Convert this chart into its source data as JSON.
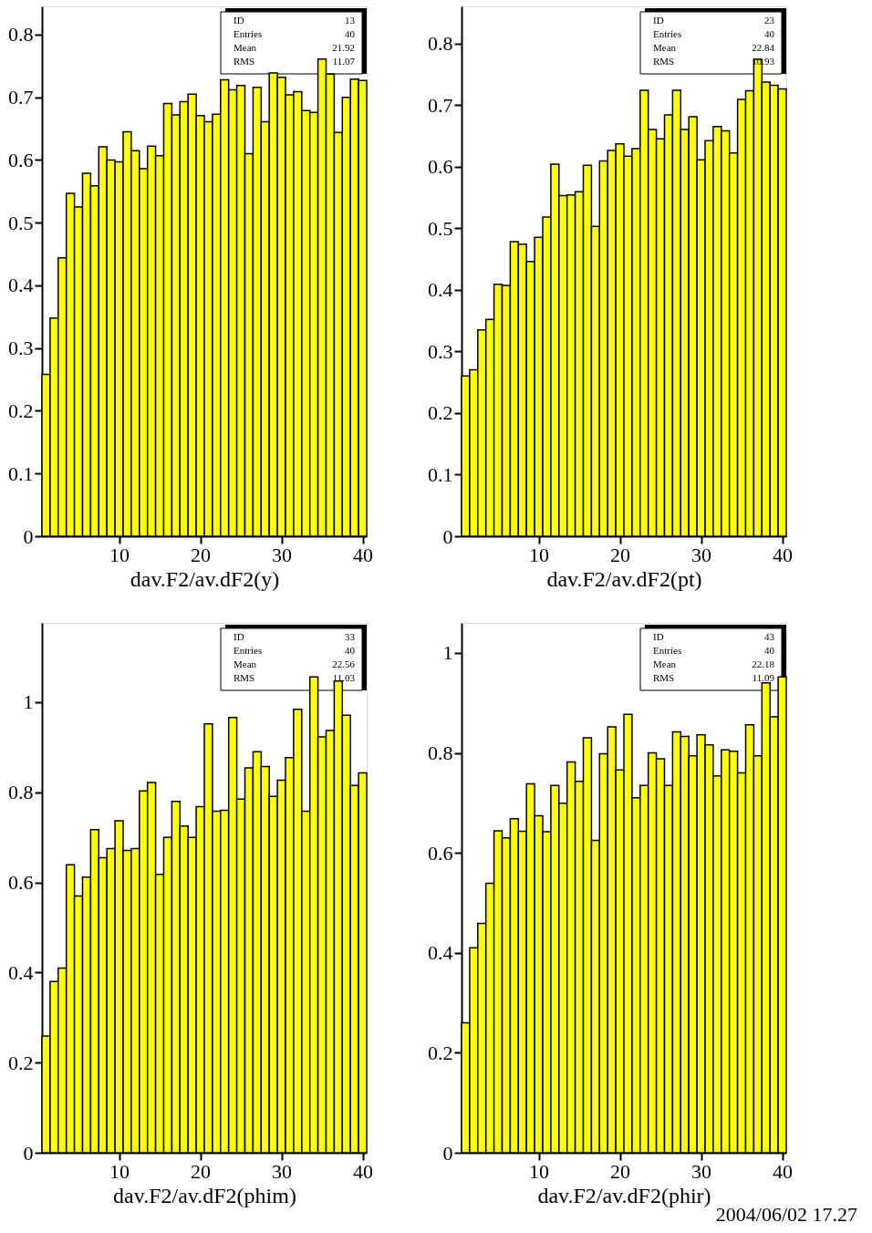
{
  "chart_data": [
    {
      "type": "histogram",
      "xlabel": "dav.F2/av.dF2(y)",
      "color": "#ffff00",
      "xlim": [
        0.5,
        40.5
      ],
      "xticks": [
        10,
        20,
        30,
        40
      ],
      "ylim": [
        0,
        0.845
      ],
      "yticks": [
        0,
        0.1,
        0.2,
        0.3,
        0.4,
        0.5,
        0.6,
        0.7,
        0.8
      ],
      "grid": false,
      "bins": [
        0.5,
        1.5,
        2.5,
        3.5,
        4.5,
        5.5,
        6.5,
        7.5,
        8.5,
        9.5,
        10.5,
        11.5,
        12.5,
        13.5,
        14.5,
        15.5,
        16.5,
        17.5,
        18.5,
        19.5,
        20.5,
        21.5,
        22.5,
        23.5,
        24.5,
        25.5,
        26.5,
        27.5,
        28.5,
        29.5,
        30.5,
        31.5,
        32.5,
        33.5,
        34.5,
        35.5,
        36.5,
        37.5,
        38.5,
        39.5,
        40.5
      ],
      "values": [
        0.258,
        0.348,
        0.444,
        0.547,
        0.525,
        0.579,
        0.559,
        0.621,
        0.6,
        0.597,
        0.645,
        0.615,
        0.586,
        0.622,
        0.607,
        0.69,
        0.672,
        0.693,
        0.705,
        0.671,
        0.661,
        0.673,
        0.728,
        0.712,
        0.719,
        0.61,
        0.716,
        0.661,
        0.739,
        0.732,
        0.704,
        0.709,
        0.679,
        0.676,
        0.761,
        0.737,
        0.644,
        0.7,
        0.729,
        0.727
      ],
      "annotations": [
        "ID",
        "13",
        "Entries",
        "40",
        "Mean",
        "21.92",
        "RMS",
        "11.07"
      ]
    },
    {
      "type": "histogram",
      "xlabel": "dav.F2/av.dF2(pt)",
      "color": "#ffff00",
      "xlim": [
        0.5,
        40.5
      ],
      "xticks": [
        10,
        20,
        30,
        40
      ],
      "ylim": [
        0,
        0.86
      ],
      "yticks": [
        0,
        0.1,
        0.2,
        0.3,
        0.4,
        0.5,
        0.6,
        0.7,
        0.8
      ],
      "grid": false,
      "bins": [
        0.5,
        1.5,
        2.5,
        3.5,
        4.5,
        5.5,
        6.5,
        7.5,
        8.5,
        9.5,
        10.5,
        11.5,
        12.5,
        13.5,
        14.5,
        15.5,
        16.5,
        17.5,
        18.5,
        19.5,
        20.5,
        21.5,
        22.5,
        23.5,
        24.5,
        25.5,
        26.5,
        27.5,
        28.5,
        29.5,
        30.5,
        31.5,
        32.5,
        33.5,
        34.5,
        35.5,
        36.5,
        37.5,
        38.5,
        39.5,
        40.5
      ],
      "values": [
        0.26,
        0.27,
        0.335,
        0.352,
        0.409,
        0.407,
        0.478,
        0.474,
        0.446,
        0.485,
        0.518,
        0.604,
        0.553,
        0.554,
        0.559,
        0.602,
        0.503,
        0.609,
        0.626,
        0.637,
        0.617,
        0.629,
        0.724,
        0.66,
        0.645,
        0.684,
        0.724,
        0.66,
        0.681,
        0.611,
        0.642,
        0.665,
        0.658,
        0.622,
        0.709,
        0.723,
        0.774,
        0.737,
        0.732,
        0.726
      ],
      "annotations": [
        "ID",
        "23",
        "Entries",
        "40",
        "Mean",
        "22.84",
        "RMS",
        "10.93"
      ]
    },
    {
      "type": "histogram",
      "xlabel": "dav.F2/av.dF2(phim)",
      "color": "#ffff00",
      "xlim": [
        0.5,
        40.5
      ],
      "xticks": [
        10,
        20,
        30,
        40
      ],
      "ylim": [
        0,
        1.176
      ],
      "yticks": [
        0,
        0.2,
        0.4,
        0.6,
        0.8,
        1
      ],
      "grid": false,
      "bins": [
        0.5,
        1.5,
        2.5,
        3.5,
        4.5,
        5.5,
        6.5,
        7.5,
        8.5,
        9.5,
        10.5,
        11.5,
        12.5,
        13.5,
        14.5,
        15.5,
        16.5,
        17.5,
        18.5,
        19.5,
        20.5,
        21.5,
        22.5,
        23.5,
        24.5,
        25.5,
        26.5,
        27.5,
        28.5,
        29.5,
        30.5,
        31.5,
        32.5,
        33.5,
        34.5,
        35.5,
        36.5,
        37.5,
        38.5,
        39.5,
        40.5
      ],
      "values": [
        0.259,
        0.38,
        0.41,
        0.639,
        0.57,
        0.612,
        0.717,
        0.655,
        0.675,
        0.737,
        0.671,
        0.675,
        0.803,
        0.822,
        0.618,
        0.7,
        0.78,
        0.725,
        0.7,
        0.768,
        0.952,
        0.758,
        0.76,
        0.966,
        0.785,
        0.854,
        0.89,
        0.857,
        0.791,
        0.827,
        0.877,
        0.984,
        0.758,
        1.056,
        0.923,
        0.937,
        1.047,
        0.971,
        0.815,
        0.843
      ],
      "annotations": [
        "ID",
        "33",
        "Entries",
        "40",
        "Mean",
        "22.56",
        "RMS",
        "11.03"
      ]
    },
    {
      "type": "histogram",
      "xlabel": "dav.F2/av.dF2(phir)",
      "color": "#ffff00",
      "xlim": [
        0.5,
        40.5
      ],
      "xticks": [
        10,
        20,
        30,
        40
      ],
      "ylim": [
        0,
        1.06
      ],
      "yticks": [
        0,
        0.2,
        0.4,
        0.6,
        0.8,
        1
      ],
      "grid": false,
      "bins": [
        0.5,
        1.5,
        2.5,
        3.5,
        4.5,
        5.5,
        6.5,
        7.5,
        8.5,
        9.5,
        10.5,
        11.5,
        12.5,
        13.5,
        14.5,
        15.5,
        16.5,
        17.5,
        18.5,
        19.5,
        20.5,
        21.5,
        22.5,
        23.5,
        24.5,
        25.5,
        26.5,
        27.5,
        28.5,
        29.5,
        30.5,
        31.5,
        32.5,
        33.5,
        34.5,
        35.5,
        36.5,
        37.5,
        38.5,
        39.5,
        40.5
      ],
      "values": [
        0.26,
        0.41,
        0.459,
        0.539,
        0.644,
        0.63,
        0.668,
        0.643,
        0.738,
        0.674,
        0.642,
        0.735,
        0.699,
        0.782,
        0.743,
        0.83,
        0.625,
        0.798,
        0.852,
        0.766,
        0.877,
        0.71,
        0.735,
        0.8,
        0.788,
        0.735,
        0.842,
        0.833,
        0.794,
        0.836,
        0.816,
        0.754,
        0.806,
        0.803,
        0.76,
        0.856,
        0.794,
        0.94,
        0.872,
        0.952
      ],
      "annotations": [
        "ID",
        "43",
        "Entries",
        "40",
        "Mean",
        "22.18",
        "RMS",
        "11.09",
        "2004/06/02   17.27"
      ]
    }
  ]
}
